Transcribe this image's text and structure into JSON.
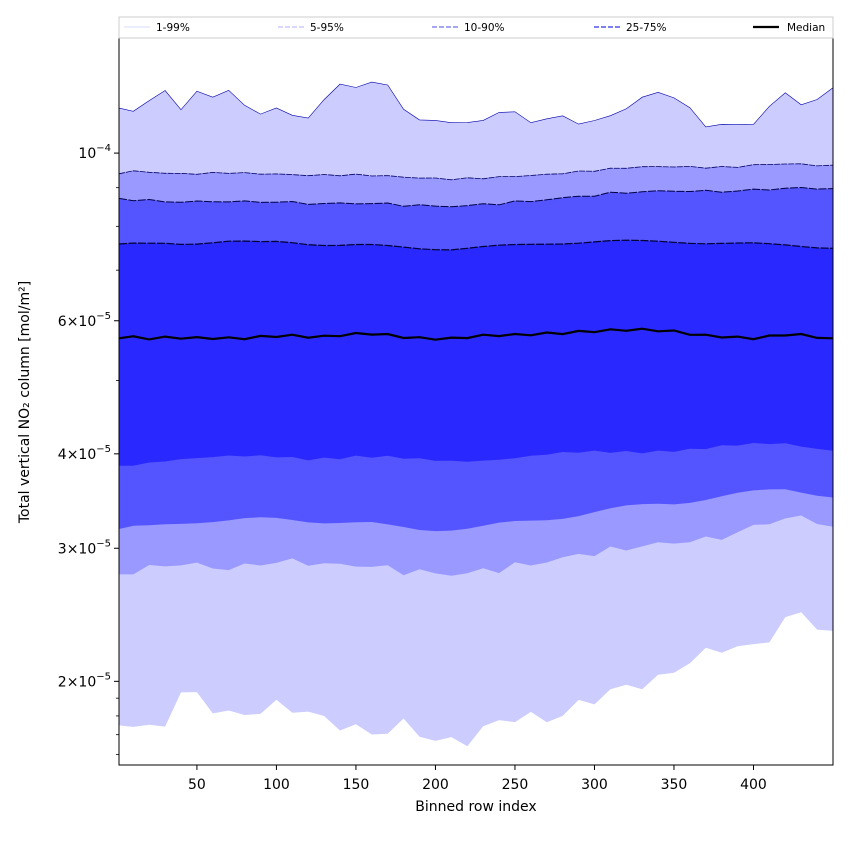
{
  "chart_data": {
    "type": "area",
    "xlabel": "Binned row index",
    "ylabel": "Total vertical NO₂ column [mol/m²]",
    "y_scale": "log",
    "xlim": [
      1,
      450
    ],
    "ylim": [
      1.55e-05,
      0.000142
    ],
    "x_ticks": [
      50,
      100,
      150,
      200,
      250,
      300,
      350,
      400
    ],
    "y_ticks": [
      {
        "value": 2e-05,
        "mantissa": "2",
        "exponent": "-5"
      },
      {
        "value": 3e-05,
        "mantissa": "3",
        "exponent": "-5"
      },
      {
        "value": 4e-05,
        "mantissa": "4",
        "exponent": "-5"
      },
      {
        "value": 6e-05,
        "mantissa": "6",
        "exponent": "-5"
      },
      {
        "value": 0.0001,
        "mantissa": "",
        "exponent": "-4"
      }
    ],
    "x": [
      1,
      10,
      20,
      30,
      40,
      50,
      60,
      70,
      80,
      90,
      100,
      110,
      120,
      130,
      140,
      150,
      160,
      170,
      180,
      190,
      200,
      210,
      220,
      230,
      240,
      250,
      260,
      270,
      280,
      290,
      300,
      310,
      320,
      330,
      340,
      350,
      360,
      370,
      380,
      390,
      400,
      410,
      420,
      430,
      440,
      450
    ],
    "series": [
      {
        "name": "1-99%",
        "band": "outer",
        "fill": "#ccccff",
        "low": [
          17.5,
          17.6,
          17.4,
          17.9,
          19.2,
          19.0,
          18.3,
          18.0,
          18.3,
          18.5,
          18.6,
          18.3,
          18.0,
          17.7,
          17.7,
          17.5,
          17.1,
          17.2,
          17.3,
          17.0,
          16.8,
          16.8,
          16.9,
          17.2,
          17.5,
          17.8,
          17.9,
          18.0,
          18.3,
          18.6,
          18.8,
          19.2,
          19.6,
          20.0,
          20.3,
          20.7,
          21.2,
          21.6,
          22.0,
          22.3,
          22.4,
          23.0,
          24.0,
          24.5,
          23.5,
          23.0
        ],
        "high": [
          114.0,
          115.0,
          117.0,
          120.0,
          115.0,
          121.0,
          118.0,
          121.0,
          116.0,
          113.0,
          114.0,
          112.0,
          112.5,
          117.0,
          122.5,
          123.5,
          124.0,
          122.0,
          115.0,
          111.0,
          110.0,
          109.5,
          110.0,
          111.0,
          112.5,
          113.0,
          111.0,
          110.5,
          111.0,
          110.5,
          110.5,
          111.0,
          115.0,
          119.0,
          120.0,
          118.0,
          115.0,
          109.0,
          108.5,
          108.5,
          110.5,
          115.0,
          119.0,
          117.0,
          118.0,
          121.0
        ]
      },
      {
        "name": "5-95%",
        "band": "5-95",
        "fill": "#9999ff",
        "low": [
          27.6,
          28.0,
          28.2,
          28.5,
          28.6,
          28.5,
          28.3,
          28.2,
          28.4,
          28.6,
          28.8,
          28.8,
          28.7,
          28.6,
          28.5,
          28.5,
          28.4,
          28.2,
          28.0,
          27.9,
          27.8,
          27.7,
          27.8,
          28.0,
          28.2,
          28.4,
          28.6,
          28.8,
          29.1,
          29.4,
          29.6,
          29.8,
          30.0,
          30.2,
          30.4,
          30.5,
          30.7,
          30.8,
          31.0,
          31.5,
          32.0,
          32.5,
          32.8,
          33.0,
          32.5,
          32.0
        ],
        "high": [
          94.0,
          94.5,
          94.3,
          94.0,
          93.8,
          93.9,
          94.0,
          94.2,
          94.0,
          93.9,
          93.8,
          93.6,
          93.5,
          93.5,
          93.6,
          93.6,
          93.5,
          93.3,
          93.0,
          92.8,
          92.6,
          92.5,
          92.6,
          92.8,
          93.0,
          93.3,
          93.5,
          93.8,
          94.2,
          94.6,
          95.0,
          95.4,
          95.8,
          96.0,
          96.1,
          96.1,
          96.0,
          95.9,
          95.9,
          96.1,
          96.5,
          96.8,
          96.9,
          96.8,
          96.5,
          96.3
        ]
      },
      {
        "name": "10-90%",
        "band": "10-90",
        "fill": "#5555ff",
        "low": [
          31.5,
          31.8,
          32.0,
          32.3,
          32.5,
          32.6,
          32.6,
          32.6,
          32.7,
          32.8,
          32.9,
          32.9,
          32.8,
          32.7,
          32.6,
          32.5,
          32.4,
          32.2,
          32.1,
          32.0,
          32.0,
          32.0,
          32.0,
          32.1,
          32.3,
          32.5,
          32.7,
          32.9,
          33.1,
          33.3,
          33.5,
          33.7,
          33.9,
          34.1,
          34.3,
          34.4,
          34.6,
          34.8,
          35.0,
          35.2,
          35.4,
          35.6,
          35.8,
          35.6,
          35.3,
          35.0
        ],
        "high": [
          87.0,
          86.8,
          86.5,
          86.3,
          86.2,
          86.2,
          86.3,
          86.3,
          86.2,
          86.2,
          86.2,
          86.0,
          85.8,
          85.7,
          85.8,
          85.8,
          85.8,
          85.6,
          85.4,
          85.2,
          85.1,
          85.0,
          85.2,
          85.5,
          85.8,
          86.1,
          86.4,
          86.8,
          87.2,
          87.6,
          88.0,
          88.4,
          88.7,
          88.9,
          89.0,
          89.1,
          89.1,
          89.0,
          89.0,
          89.1,
          89.4,
          89.6,
          89.8,
          89.9,
          89.8,
          89.7
        ]
      },
      {
        "name": "25-75%",
        "band": "25-75",
        "fill": "#2929ff",
        "low": [
          38.7,
          38.9,
          39.1,
          39.2,
          39.3,
          39.3,
          39.4,
          39.5,
          39.6,
          39.7,
          39.8,
          39.7,
          39.6,
          39.6,
          39.6,
          39.6,
          39.5,
          39.4,
          39.3,
          39.2,
          39.2,
          39.2,
          39.3,
          39.4,
          39.5,
          39.6,
          39.7,
          39.8,
          39.9,
          40.0,
          40.1,
          40.2,
          40.3,
          40.4,
          40.5,
          40.6,
          40.6,
          40.7,
          40.8,
          40.9,
          41.0,
          41.1,
          41.2,
          41.0,
          40.8,
          40.6
        ],
        "high": [
          75.5,
          75.7,
          75.8,
          76.0,
          75.9,
          76.0,
          76.2,
          76.4,
          76.3,
          76.2,
          76.4,
          76.3,
          76.0,
          75.8,
          75.7,
          75.7,
          75.6,
          75.4,
          75.2,
          75.0,
          74.9,
          74.8,
          75.0,
          75.2,
          75.4,
          75.6,
          75.8,
          76.0,
          76.1,
          76.2,
          76.3,
          76.4,
          76.4,
          76.4,
          76.4,
          76.3,
          76.1,
          75.9,
          75.8,
          75.7,
          75.7,
          75.6,
          75.5,
          75.3,
          75.0,
          74.8
        ]
      }
    ],
    "median": {
      "name": "Median",
      "color": "#000000",
      "values": [
        57.0,
        56.9,
        56.8,
        57.0,
        57.1,
        57.0,
        57.0,
        56.8,
        56.8,
        57.0,
        57.3,
        57.4,
        57.3,
        57.2,
        57.4,
        57.5,
        57.6,
        57.4,
        57.2,
        57.0,
        56.9,
        56.8,
        57.0,
        57.2,
        57.4,
        57.5,
        57.7,
        57.8,
        57.8,
        57.9,
        58.0,
        58.2,
        58.4,
        58.5,
        58.4,
        58.1,
        57.6,
        57.2,
        57.1,
        57.0,
        57.0,
        57.3,
        57.6,
        57.4,
        57.0,
        56.6
      ]
    },
    "value_unit_scale": 1e-06,
    "legend": {
      "placement": "top",
      "entries": [
        {
          "label": "1-99%",
          "color": "#ccccff",
          "style": "thin"
        },
        {
          "label": "5-95%",
          "color": "#9999ff",
          "style": "thin-dash"
        },
        {
          "label": "10-90%",
          "color": "#8888ee",
          "style": "dash"
        },
        {
          "label": "25-75%",
          "color": "#5555ee",
          "style": "dash"
        },
        {
          "label": "Median",
          "color": "#000000",
          "style": "solid"
        }
      ]
    },
    "grid": false
  }
}
